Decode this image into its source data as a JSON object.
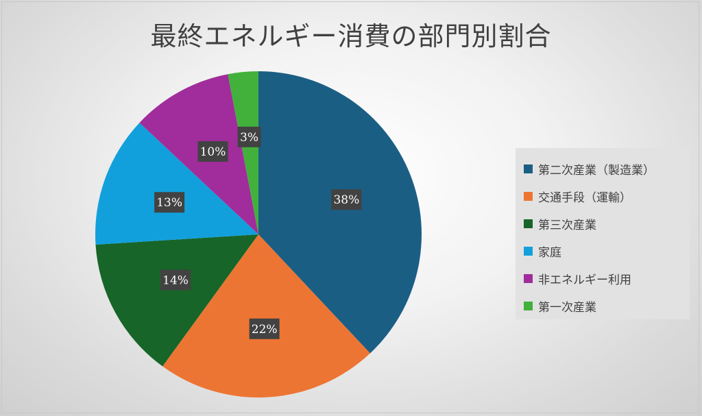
{
  "chart_data": {
    "type": "pie",
    "title": "最終エネルギー消費の部門別割合",
    "categories": [
      "第二次産業（製造業）",
      "交通手段（運輸）",
      "第三次産業",
      "家庭",
      "非エネルギー利用",
      "第一次産業"
    ],
    "values": [
      38,
      22,
      14,
      13,
      10,
      3
    ],
    "labels": [
      "38%",
      "22%",
      "14%",
      "13%",
      "10%",
      "3%"
    ],
    "colors": [
      "#1b5e84",
      "#ed7533",
      "#176528",
      "#11a0dc",
      "#a02d9b",
      "#42b13c"
    ],
    "legend_position": "right"
  }
}
